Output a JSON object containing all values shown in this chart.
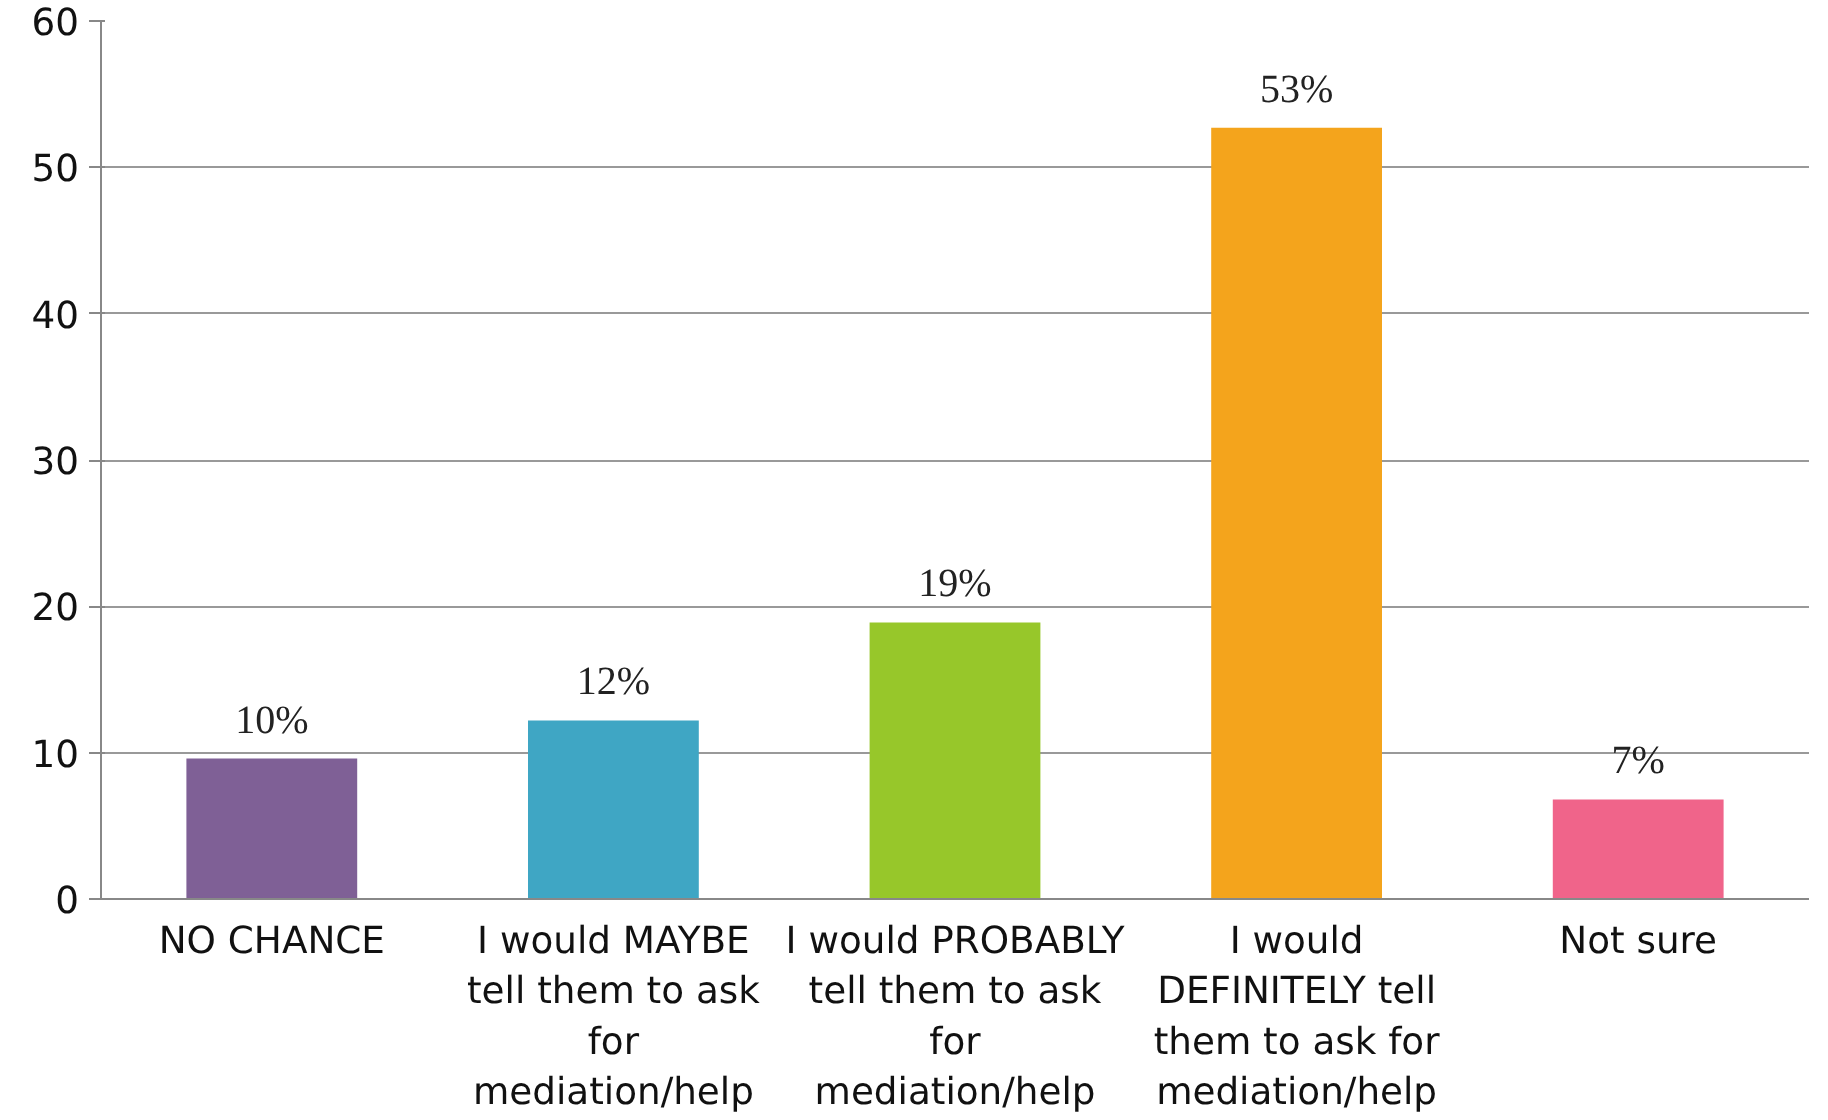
{
  "chart_data": {
    "type": "bar",
    "categories": [
      "NO CHANCE",
      "I would MAYBE tell them to ask for mediation/help",
      "I would PROBABLY tell them to ask for mediation/help",
      "I would DEFINITELY tell them to ask for mediation/help",
      "Not sure"
    ],
    "values": [
      9.6,
      12.2,
      18.9,
      52.7,
      6.8
    ],
    "colors": [
      "#7f6096",
      "#3fa6c4",
      "#97c72a",
      "#f4a41c",
      "#f0648a"
    ],
    "value_labels": [
      "10%",
      "12%",
      "19%",
      "53%",
      "7%"
    ],
    "ylim": [
      0,
      60
    ],
    "yticks": [
      0,
      10,
      20,
      30,
      40,
      50,
      60
    ],
    "grid": "y"
  }
}
